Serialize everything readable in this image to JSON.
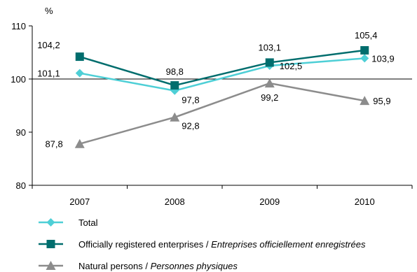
{
  "chart_data": {
    "type": "line",
    "unit_label": "%",
    "categories": [
      "2007",
      "2008",
      "2009",
      "2010"
    ],
    "ylim": [
      80,
      110
    ],
    "yticks": [
      80,
      90,
      100,
      110
    ],
    "grid": false,
    "legend_position": "bottom",
    "series": [
      {
        "name": "Total",
        "name_italic": "",
        "color": "#4ECFD6",
        "marker": "diamond",
        "values": [
          101.1,
          97.8,
          102.5,
          103.9
        ],
        "labels": [
          "101,1",
          "97,8",
          "102,5",
          "103,9"
        ]
      },
      {
        "name": "Officially registered enterprises / ",
        "name_italic": "Entreprises officiellement enregistrées",
        "color": "#006D6D",
        "marker": "square",
        "values": [
          104.2,
          98.8,
          103.1,
          105.4
        ],
        "labels": [
          "104,2",
          "98,8",
          "103,1",
          "105,4"
        ]
      },
      {
        "name": "Natural persons / ",
        "name_italic": "Personnes physiques",
        "color": "#8C8C8C",
        "marker": "triangle",
        "values": [
          87.8,
          92.8,
          99.2,
          95.9
        ],
        "labels": [
          "87,8",
          "92,8",
          "99,2",
          "95,9"
        ]
      }
    ]
  }
}
